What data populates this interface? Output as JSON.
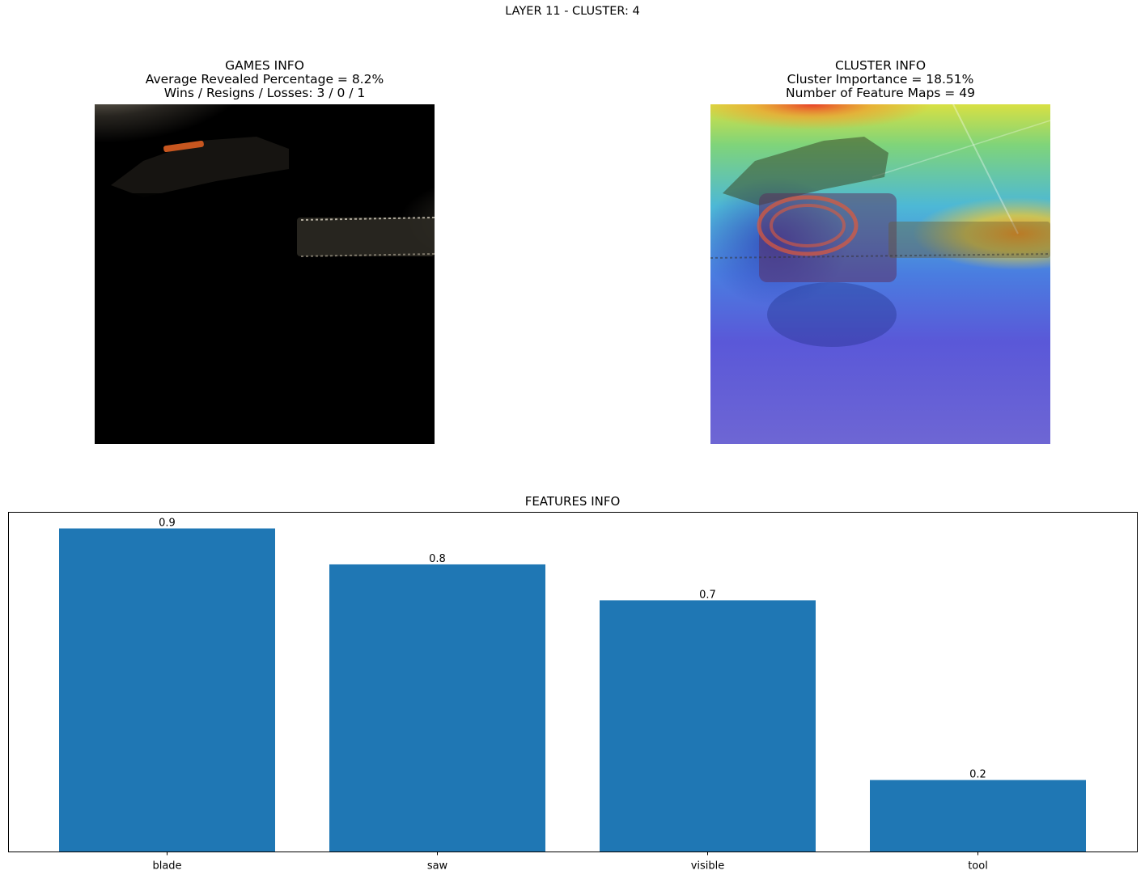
{
  "suptitle": "LAYER 11 - CLUSTER: 4",
  "games_info": {
    "title": "GAMES INFO",
    "line1": "Average Revealed Percentage = 8.2%",
    "line2": "Wins / Resigns / Losses: 3 / 0 / 1"
  },
  "cluster_info": {
    "title": "CLUSTER INFO",
    "line1": "Cluster Importance = 18.51%",
    "line2": "Number of Feature Maps = 49"
  },
  "chart_data": {
    "type": "bar",
    "title": "FEATURES INFO",
    "categories": [
      "blade",
      "saw",
      "visible",
      "tool"
    ],
    "values": [
      0.9,
      0.8,
      0.7,
      0.2
    ],
    "data_labels": [
      "0.9",
      "0.8",
      "0.7",
      "0.2"
    ],
    "xlabel": "",
    "ylabel": "",
    "ylim": [
      0,
      0.945
    ],
    "yaxis_ticks": "hidden",
    "bar_color": "#1f77b4",
    "grid": false
  }
}
